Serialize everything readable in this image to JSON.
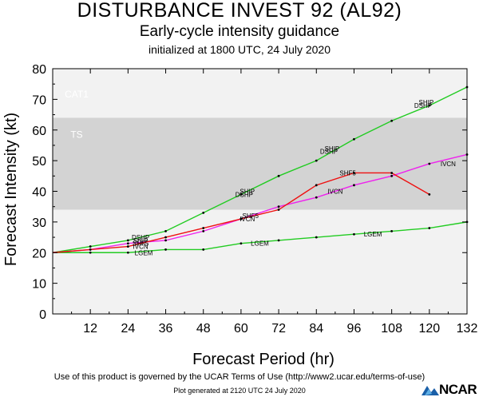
{
  "header": {
    "title": "DISTURBANCE INVEST 92 (AL92)",
    "subtitle": "Early-cycle intensity guidance",
    "initialized": "initialized at 1800 UTC, 24 July 2020"
  },
  "footer": {
    "terms": "Use of this product is governed by the UCAR Terms of Use (http://www2.ucar.edu/terms-of-use)",
    "generated": "Plot generated at 2120 UTC  24 July 2020",
    "logo_text": "NCAR"
  },
  "chart_data": {
    "type": "line",
    "xlabel": "Forecast Period (hr)",
    "ylabel": "Forecast Intensity (kt)",
    "xlim": [
      0,
      132
    ],
    "ylim": [
      0,
      80
    ],
    "xticks": [
      12,
      24,
      36,
      48,
      60,
      72,
      84,
      96,
      108,
      120,
      132
    ],
    "yticks": [
      0,
      10,
      20,
      30,
      40,
      50,
      60,
      70,
      80
    ],
    "bands": [
      {
        "label": "TS",
        "from": 34,
        "to": 64,
        "color": "#d3d3d3"
      },
      {
        "label": "CAT1",
        "from": 64,
        "to": 83,
        "color": "#f2f2f2"
      }
    ],
    "background": "#f2f2f2",
    "series": [
      {
        "name": "DSHP",
        "color": "#22cc22",
        "x": [
          0,
          12,
          24,
          36,
          48,
          60,
          72,
          84,
          96,
          108,
          120,
          132
        ],
        "values": [
          20,
          22,
          24,
          27,
          33,
          39,
          45,
          50,
          57,
          63,
          68,
          74
        ],
        "labels": [
          {
            "text": "DSHP",
            "x": 28,
            "y": 25
          },
          {
            "text": "DSHP",
            "x": 61,
            "y": 39
          },
          {
            "text": "DSHP",
            "x": 88,
            "y": 53
          },
          {
            "text": "DSHP",
            "x": 118,
            "y": 68
          }
        ]
      },
      {
        "name": "LGEM",
        "color": "#22cc22",
        "x": [
          0,
          12,
          24,
          36,
          48,
          60,
          72,
          84,
          96,
          108,
          120,
          132
        ],
        "values": [
          20,
          20,
          20,
          21,
          21,
          23,
          24,
          25,
          26,
          27,
          28,
          30
        ],
        "labels": [
          {
            "text": "LGEM",
            "x": 29,
            "y": 20
          },
          {
            "text": "LGEM",
            "x": 66,
            "y": 23
          },
          {
            "text": "LGEM",
            "x": 102,
            "y": 26
          }
        ]
      },
      {
        "name": "SHIP",
        "color": "#22cc22",
        "x": [],
        "values": [],
        "labels": [
          {
            "text": "SHIP",
            "x": 28,
            "y": 24
          },
          {
            "text": "SHIP",
            "x": 62,
            "y": 40
          },
          {
            "text": "SHIP",
            "x": 89,
            "y": 54
          },
          {
            "text": "SHIP",
            "x": 119,
            "y": 69
          }
        ]
      },
      {
        "name": "IVCN",
        "color": "#ee22ee",
        "x": [
          0,
          12,
          24,
          36,
          48,
          60,
          72,
          84,
          96,
          108,
          120,
          132
        ],
        "values": [
          20,
          21,
          23,
          24,
          27,
          31,
          35,
          38,
          42,
          45,
          49,
          52
        ],
        "labels": [
          {
            "text": "IVCN",
            "x": 28,
            "y": 22
          },
          {
            "text": "IVCN",
            "x": 62,
            "y": 31
          },
          {
            "text": "IVCN",
            "x": 90,
            "y": 40
          },
          {
            "text": "IVCN",
            "x": 126,
            "y": 49
          }
        ]
      },
      {
        "name": "SHF5",
        "color": "#ee1111",
        "x": [
          0,
          12,
          24,
          36,
          48,
          60,
          72,
          84,
          96,
          108,
          120
        ],
        "values": [
          20,
          21,
          22,
          25,
          28,
          31,
          34,
          42,
          46,
          46,
          39
        ],
        "labels": [
          {
            "text": "SHF5",
            "x": 28,
            "y": 23
          },
          {
            "text": "SHF5",
            "x": 63,
            "y": 32
          },
          {
            "text": "SHF5",
            "x": 94,
            "y": 46
          }
        ]
      }
    ]
  }
}
